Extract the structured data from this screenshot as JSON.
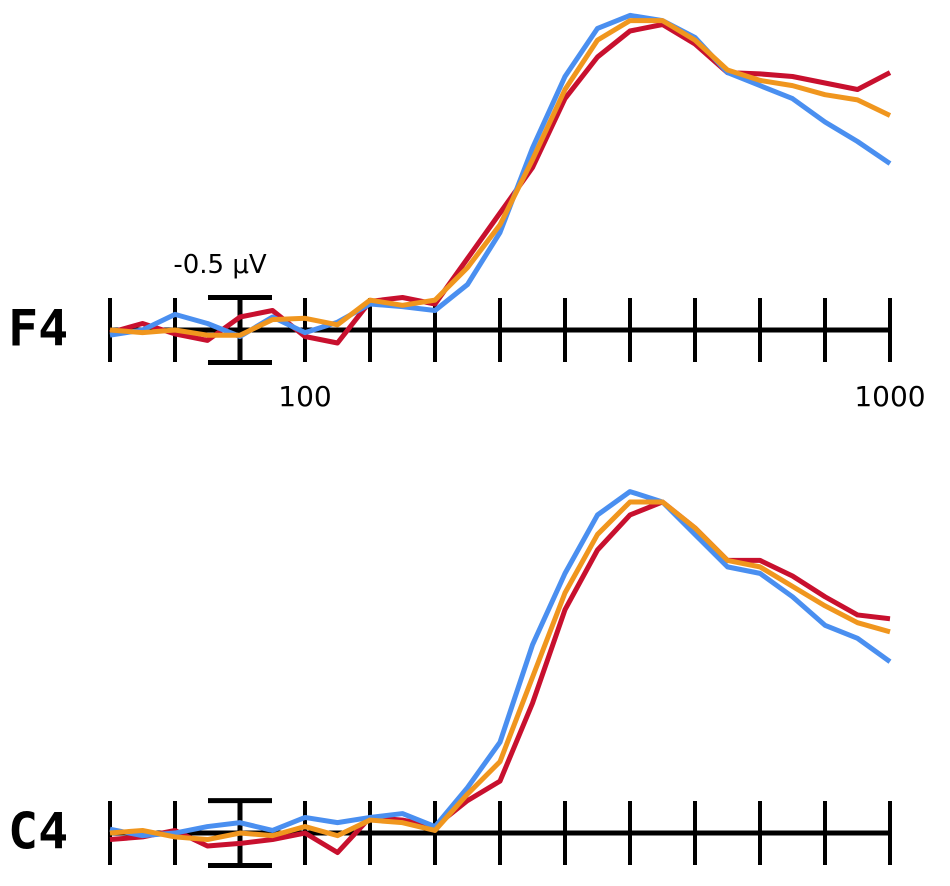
{
  "chart_data": [
    {
      "type": "line",
      "panel_label": "F4",
      "x": [
        -200,
        -150,
        -100,
        -50,
        0,
        50,
        100,
        150,
        200,
        250,
        300,
        350,
        400,
        450,
        500,
        550,
        600,
        650,
        700,
        750,
        800,
        850,
        900,
        950,
        1000
      ],
      "xlim": [
        -200,
        1000
      ],
      "xticks": [
        -200,
        -100,
        0,
        100,
        200,
        300,
        400,
        500,
        600,
        700,
        800,
        900,
        1000
      ],
      "xtick_labels": [
        100,
        1000
      ],
      "ylim": [
        0.25,
        -2.5
      ],
      "scale_bar": {
        "label": "-0.5 μV",
        "at": 0,
        "span": [
          0.25,
          -0.25
        ]
      },
      "series": [
        {
          "color": "#c8102e",
          "values": [
            0.02,
            -0.05,
            0.03,
            0.08,
            -0.1,
            -0.15,
            0.05,
            0.1,
            -0.22,
            -0.25,
            -0.2,
            -0.55,
            -0.9,
            -1.25,
            -1.78,
            -2.1,
            -2.3,
            -2.35,
            -2.2,
            -1.98,
            -1.97,
            -1.95,
            -1.9,
            -1.85,
            -1.98
          ]
        },
        {
          "color": "#4a8ff0",
          "values": [
            0.04,
            0.0,
            -0.12,
            -0.05,
            0.05,
            -0.1,
            0.02,
            -0.06,
            -0.2,
            -0.18,
            -0.15,
            -0.35,
            -0.75,
            -1.4,
            -1.95,
            -2.32,
            -2.42,
            -2.38,
            -2.25,
            -1.98,
            -1.88,
            -1.78,
            -1.6,
            -1.45,
            -1.28
          ]
        },
        {
          "color": "#f0961e",
          "values": [
            0,
            0.02,
            0,
            0.04,
            0.04,
            -0.08,
            -0.09,
            -0.04,
            -0.23,
            -0.19,
            -0.23,
            -0.48,
            -0.81,
            -1.31,
            -1.85,
            -2.23,
            -2.38,
            -2.38,
            -2.23,
            -2.0,
            -1.92,
            -1.88,
            -1.81,
            -1.77,
            -1.65
          ]
        }
      ]
    },
    {
      "type": "line",
      "panel_label": "C4",
      "x": [
        -200,
        -150,
        -100,
        -50,
        0,
        50,
        100,
        150,
        200,
        250,
        300,
        350,
        400,
        450,
        500,
        550,
        600,
        650,
        700,
        750,
        800,
        850,
        900,
        950,
        1000
      ],
      "xlim": [
        -200,
        1000
      ],
      "xticks": [
        -200,
        -100,
        0,
        100,
        200,
        300,
        400,
        500,
        600,
        700,
        800,
        900,
        1000
      ],
      "ylim": [
        0.25,
        -2.75
      ],
      "scale_bar": {
        "at": 0,
        "span": [
          0.25,
          -0.25
        ]
      },
      "series": [
        {
          "color": "#c8102e",
          "values": [
            0.05,
            0.03,
            -0.02,
            0.1,
            0.08,
            0.05,
            0.0,
            0.15,
            -0.12,
            -0.1,
            -0.05,
            -0.25,
            -0.4,
            -1.0,
            -1.72,
            -2.18,
            -2.45,
            -2.55,
            -2.35,
            -2.1,
            -2.1,
            -1.98,
            -1.82,
            -1.68,
            -1.65
          ]
        },
        {
          "color": "#4a8ff0",
          "values": [
            -0.03,
            0.02,
            0.0,
            -0.05,
            -0.08,
            -0.02,
            -0.12,
            -0.08,
            -0.12,
            -0.15,
            -0.05,
            -0.35,
            -0.7,
            -1.45,
            -2.0,
            -2.45,
            -2.63,
            -2.55,
            -2.3,
            -2.05,
            -2.0,
            -1.82,
            -1.6,
            -1.5,
            -1.32
          ]
        },
        {
          "color": "#f0961e",
          "values": [
            0,
            -0.02,
            0.03,
            0.05,
            0.0,
            0.02,
            -0.05,
            0.02,
            -0.1,
            -0.08,
            -0.02,
            -0.3,
            -0.55,
            -1.2,
            -1.85,
            -2.3,
            -2.55,
            -2.55,
            -2.35,
            -2.1,
            -2.05,
            -1.9,
            -1.75,
            -1.62,
            -1.55
          ]
        }
      ]
    }
  ]
}
